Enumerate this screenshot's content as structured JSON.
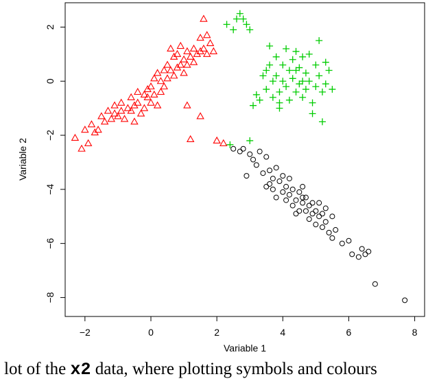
{
  "chart_data": {
    "type": "scatter",
    "xlabel": "Variable 1",
    "ylabel": "Variable 2",
    "xlim": [
      -2.6,
      8.3
    ],
    "ylim": [
      -8.7,
      2.9
    ],
    "xticks": [
      -2,
      0,
      2,
      4,
      6,
      8
    ],
    "yticks": [
      -8,
      -6,
      -4,
      -2,
      0,
      2
    ],
    "tick_labels_x": [
      "−2",
      "0",
      "2",
      "4",
      "6",
      "8"
    ],
    "tick_labels_y": [
      "−8",
      "−6",
      "−4",
      "−2",
      "0",
      "2"
    ],
    "grid": false,
    "series": [
      {
        "color": "#ff0000",
        "marker": "triangle",
        "points": [
          [
            -2.3,
            -2.1
          ],
          [
            -2.1,
            -2.5
          ],
          [
            -2.0,
            -1.8
          ],
          [
            -1.9,
            -2.3
          ],
          [
            -1.8,
            -1.6
          ],
          [
            -1.7,
            -1.9
          ],
          [
            -1.6,
            -1.8
          ],
          [
            -1.5,
            -1.3
          ],
          [
            -1.4,
            -1.5
          ],
          [
            -1.3,
            -1.1
          ],
          [
            -1.2,
            -1.4
          ],
          [
            -1.1,
            -0.9
          ],
          [
            -1.1,
            -1.2
          ],
          [
            -1.0,
            -1.3
          ],
          [
            -0.9,
            -0.8
          ],
          [
            -0.9,
            -1.1
          ],
          [
            -0.8,
            -1.4
          ],
          [
            -0.7,
            -1.0
          ],
          [
            -0.6,
            -0.6
          ],
          [
            -0.6,
            -1.1
          ],
          [
            -0.5,
            -0.9
          ],
          [
            -0.4,
            -0.4
          ],
          [
            -0.4,
            -0.8
          ],
          [
            -0.3,
            -1.2
          ],
          [
            -0.2,
            -0.5
          ],
          [
            -0.1,
            -0.3
          ],
          [
            -0.1,
            -0.6
          ],
          [
            0.0,
            -0.2
          ],
          [
            0.0,
            -0.8
          ],
          [
            0.1,
            0.1
          ],
          [
            0.1,
            -0.5
          ],
          [
            0.2,
            0.3
          ],
          [
            0.3,
            0.0
          ],
          [
            0.3,
            -0.4
          ],
          [
            0.4,
            0.4
          ],
          [
            0.5,
            0.6
          ],
          [
            0.5,
            0.1
          ],
          [
            0.6,
            1.2
          ],
          [
            0.7,
            0.9
          ],
          [
            0.7,
            0.2
          ],
          [
            0.8,
            1.0
          ],
          [
            0.8,
            0.5
          ],
          [
            0.9,
            1.3
          ],
          [
            0.9,
            0.6
          ],
          [
            1.0,
            0.8
          ],
          [
            1.0,
            0.3
          ],
          [
            1.1,
            1.1
          ],
          [
            1.1,
            0.6
          ],
          [
            1.2,
            0.9
          ],
          [
            1.3,
            1.2
          ],
          [
            1.3,
            0.7
          ],
          [
            1.4,
            1.0
          ],
          [
            1.5,
            1.6
          ],
          [
            1.5,
            1.1
          ],
          [
            1.6,
            2.3
          ],
          [
            1.6,
            1.2
          ],
          [
            1.7,
            1.7
          ],
          [
            1.7,
            1.0
          ],
          [
            1.8,
            1.4
          ],
          [
            1.9,
            1.1
          ],
          [
            1.1,
            -0.9
          ],
          [
            1.2,
            -2.15
          ],
          [
            1.5,
            -1.3
          ],
          [
            2.0,
            -2.2
          ],
          [
            2.2,
            -2.3
          ],
          [
            -0.5,
            -1.5
          ],
          [
            -0.2,
            -1.0
          ],
          [
            0.4,
            -0.2
          ],
          [
            0.6,
            0.4
          ],
          [
            0.2,
            -0.9
          ]
        ]
      },
      {
        "color": "#00cc00",
        "marker": "plus",
        "points": [
          [
            2.3,
            2.1
          ],
          [
            2.5,
            1.9
          ],
          [
            2.6,
            2.3
          ],
          [
            2.7,
            2.5
          ],
          [
            2.8,
            2.3
          ],
          [
            2.9,
            2.1
          ],
          [
            3.0,
            1.9
          ],
          [
            3.1,
            -0.9
          ],
          [
            3.2,
            -0.5
          ],
          [
            3.3,
            -0.7
          ],
          [
            3.4,
            0.2
          ],
          [
            3.5,
            0.4
          ],
          [
            3.5,
            -0.3
          ],
          [
            3.6,
            1.3
          ],
          [
            3.6,
            0.6
          ],
          [
            3.7,
            0.0
          ],
          [
            3.7,
            -0.6
          ],
          [
            3.8,
            0.9
          ],
          [
            3.8,
            0.2
          ],
          [
            3.9,
            -0.4
          ],
          [
            3.9,
            -1.0
          ],
          [
            4.0,
            0.6
          ],
          [
            4.0,
            0.0
          ],
          [
            4.1,
            1.2
          ],
          [
            4.1,
            -0.2
          ],
          [
            4.2,
            0.4
          ],
          [
            4.2,
            -0.7
          ],
          [
            4.3,
            0.8
          ],
          [
            4.3,
            0.1
          ],
          [
            4.4,
            -0.4
          ],
          [
            4.4,
            1.1
          ],
          [
            4.5,
            0.5
          ],
          [
            4.5,
            -0.1
          ],
          [
            4.6,
            0.9
          ],
          [
            4.6,
            -0.6
          ],
          [
            4.7,
            0.3
          ],
          [
            4.7,
            -0.3
          ],
          [
            4.8,
            1.0
          ],
          [
            4.8,
            0.0
          ],
          [
            4.9,
            -0.8
          ],
          [
            5.0,
            0.6
          ],
          [
            5.0,
            -0.2
          ],
          [
            5.1,
            1.5
          ],
          [
            5.1,
            0.2
          ],
          [
            5.2,
            -0.4
          ],
          [
            5.3,
            0.7
          ],
          [
            5.3,
            -0.1
          ],
          [
            5.4,
            0.4
          ],
          [
            5.5,
            -0.3
          ],
          [
            5.2,
            -1.5
          ],
          [
            4.9,
            -1.2
          ],
          [
            3.9,
            -0.8
          ],
          [
            4.4,
            0.4
          ],
          [
            4.6,
            0.0
          ],
          [
            3.0,
            -2.2
          ],
          [
            2.4,
            -2.35
          ]
        ]
      },
      {
        "color": "#000000",
        "marker": "circle",
        "points": [
          [
            2.5,
            -2.5
          ],
          [
            2.7,
            -2.6
          ],
          [
            2.8,
            -2.5
          ],
          [
            2.9,
            -3.5
          ],
          [
            3.0,
            -2.7
          ],
          [
            3.1,
            -2.9
          ],
          [
            3.2,
            -3.1
          ],
          [
            3.3,
            -2.6
          ],
          [
            3.4,
            -3.4
          ],
          [
            3.5,
            -2.8
          ],
          [
            3.5,
            -3.9
          ],
          [
            3.6,
            -3.3
          ],
          [
            3.7,
            -4.0
          ],
          [
            3.7,
            -3.6
          ],
          [
            3.8,
            -3.2
          ],
          [
            3.8,
            -4.3
          ],
          [
            3.9,
            -3.7
          ],
          [
            4.0,
            -4.1
          ],
          [
            4.0,
            -3.5
          ],
          [
            4.1,
            -4.4
          ],
          [
            4.1,
            -3.9
          ],
          [
            4.2,
            -4.2
          ],
          [
            4.2,
            -3.6
          ],
          [
            4.3,
            -4.6
          ],
          [
            4.3,
            -4.0
          ],
          [
            4.4,
            -4.4
          ],
          [
            4.5,
            -4.8
          ],
          [
            4.5,
            -4.1
          ],
          [
            4.6,
            -4.5
          ],
          [
            4.6,
            -3.9
          ],
          [
            4.7,
            -4.8
          ],
          [
            4.7,
            -4.3
          ],
          [
            4.8,
            -5.1
          ],
          [
            4.8,
            -4.6
          ],
          [
            4.9,
            -4.9
          ],
          [
            5.0,
            -5.3
          ],
          [
            5.0,
            -4.8
          ],
          [
            5.1,
            -5.0
          ],
          [
            5.1,
            -4.5
          ],
          [
            5.2,
            -5.4
          ],
          [
            5.2,
            -4.9
          ],
          [
            5.3,
            -5.2
          ],
          [
            5.3,
            -4.7
          ],
          [
            5.4,
            -5.6
          ],
          [
            5.5,
            -5.0
          ],
          [
            5.5,
            -5.8
          ],
          [
            5.6,
            -5.5
          ],
          [
            5.8,
            -6.0
          ],
          [
            6.0,
            -5.9
          ],
          [
            6.1,
            -6.4
          ],
          [
            6.3,
            -6.5
          ],
          [
            6.4,
            -6.2
          ],
          [
            6.5,
            -6.4
          ],
          [
            6.6,
            -6.3
          ],
          [
            6.8,
            -7.5
          ],
          [
            7.7,
            -8.1
          ],
          [
            4.6,
            -4.3
          ],
          [
            4.9,
            -4.5
          ],
          [
            3.6,
            -3.8
          ],
          [
            4.4,
            -4.9
          ]
        ]
      }
    ]
  },
  "caption": {
    "before": "lot of the ",
    "code": "x2",
    "after": " data, where plotting symbols and colours"
  }
}
